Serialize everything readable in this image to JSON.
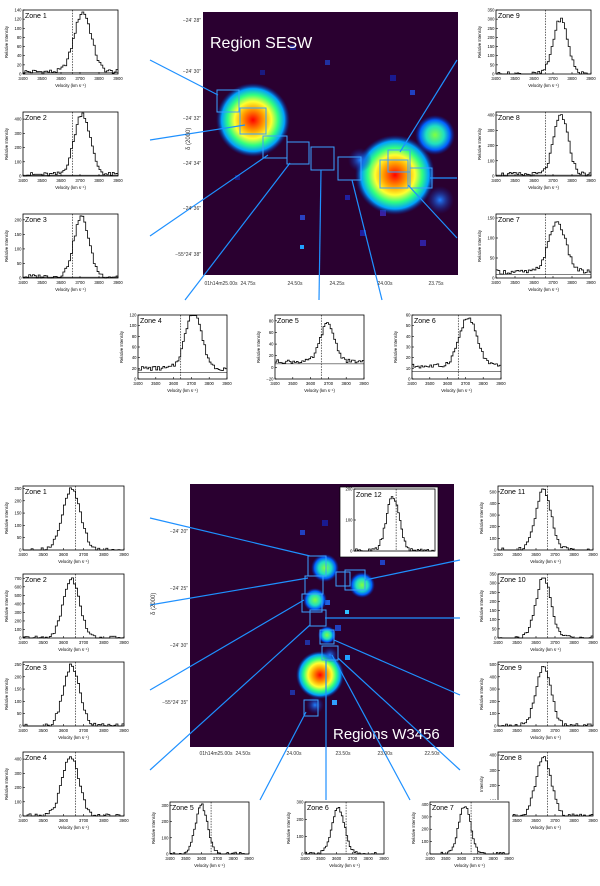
{
  "top": {
    "title": "Region SESW",
    "dec_label": "δ (2000)",
    "dec_ticks": [
      "−24′ 28″",
      "−24′ 30″",
      "−24′ 32″",
      "−24′ 34″",
      "−24′ 36″",
      "−55°24′ 38″"
    ],
    "ra_ticks": [
      "01h14m25.00s",
      "24.75s",
      "24.50s",
      "24.25s",
      "24.00s",
      "23.75s"
    ],
    "panels": [
      {
        "zone": "Zone 1",
        "ylabel": "Relative Intensity",
        "xlabel": "Velocity (km s⁻¹)",
        "yticks": [
          "0",
          "20",
          "40",
          "60",
          "80",
          "100",
          "120",
          "140"
        ],
        "ymax": 140,
        "peak": 130,
        "center": 3715,
        "width": 45,
        "dash": 3660,
        "baseline": 5
      },
      {
        "zone": "Zone 2",
        "ylabel": "Relative Intensity",
        "xlabel": "Velocity (km s⁻¹)",
        "yticks": [
          "0",
          "100",
          "200",
          "300",
          "400"
        ],
        "ymax": 450,
        "peak": 430,
        "center": 3712,
        "width": 42,
        "dash": 3660,
        "baseline": 10
      },
      {
        "zone": "Zone 3",
        "ylabel": "Relative Intensity",
        "xlabel": "Velocity (km s⁻¹)",
        "yticks": [
          "0",
          "50",
          "100",
          "150",
          "200"
        ],
        "ymax": 220,
        "peak": 205,
        "center": 3708,
        "width": 40,
        "dash": 3660,
        "baseline": 5
      },
      {
        "zone": "Zone 9",
        "ylabel": "Relative Intensity",
        "xlabel": "Velocity (km s⁻¹)",
        "yticks": [
          "0",
          "50",
          "100",
          "150",
          "200",
          "250",
          "300",
          "350"
        ],
        "ymax": 350,
        "peak": 300,
        "center": 3740,
        "width": 38,
        "dash": 3660,
        "baseline": 0
      },
      {
        "zone": "Zone 8",
        "ylabel": "Relative Intensity",
        "xlabel": "Velocity (km s⁻¹)",
        "yticks": [
          "0",
          "100",
          "200",
          "300",
          "400"
        ],
        "ymax": 420,
        "peak": 390,
        "center": 3742,
        "width": 38,
        "dash": 3660,
        "baseline": 10
      },
      {
        "zone": "Zone 7",
        "ylabel": "Relative Intensity",
        "xlabel": "Velocity (km s⁻¹)",
        "yticks": [
          "0",
          "50",
          "100",
          "150"
        ],
        "ymax": 160,
        "peak": 125,
        "center": 3722,
        "width": 45,
        "dash": 3660,
        "baseline": 15
      },
      {
        "zone": "Zone 4",
        "ylabel": "Relative Intensity",
        "xlabel": "Velocity (km s⁻¹)",
        "yticks": [
          "0",
          "20",
          "40",
          "60",
          "80",
          "100",
          "120"
        ],
        "ymax": 120,
        "peak": 108,
        "center": 3712,
        "width": 45,
        "dash": 3640,
        "baseline": 20
      },
      {
        "zone": "Zone 5",
        "ylabel": "Relative Intensity",
        "xlabel": "Velocity (km s⁻¹)",
        "yticks": [
          "−20",
          "0",
          "20",
          "40",
          "60",
          "80"
        ],
        "ymax": 90,
        "peak": 65,
        "center": 3695,
        "width": 40,
        "dash": 3660,
        "baseline": 10
      },
      {
        "zone": "Zone 6",
        "ylabel": "Relative Intensity",
        "xlabel": "Velocity (km s⁻¹)",
        "yticks": [
          "0",
          "10",
          "20",
          "30",
          "40",
          "50",
          "60"
        ],
        "ymax": 60,
        "peak": 45,
        "center": 3715,
        "width": 50,
        "dash": 3660,
        "baseline": 12
      }
    ]
  },
  "bottom": {
    "title": "Regions W3456",
    "dec_label": "δ (2000)",
    "dec_ticks": [
      "−24′ 20″",
      "−24′ 25″",
      "−24′ 30″",
      "−55°24′ 35″"
    ],
    "ra_ticks": [
      "01h14m25.00s",
      "24.50s",
      "24.00s",
      "23.50s",
      "23.00s",
      "22.50s"
    ],
    "panels": [
      {
        "zone": "Zone 1",
        "ylabel": "Relative Intensity",
        "xlabel": "Velocity (km s⁻¹)",
        "yticks": [
          "0",
          "50",
          "100",
          "150",
          "200",
          "250"
        ],
        "ymax": 260,
        "peak": 245,
        "center": 3640,
        "width": 45,
        "dash": 3660,
        "baseline": 0
      },
      {
        "zone": "Zone 2",
        "ylabel": "Relative Intensity",
        "xlabel": "Velocity (km s⁻¹)",
        "yticks": [
          "0",
          "100",
          "200",
          "300",
          "400",
          "500",
          "600",
          "700"
        ],
        "ymax": 750,
        "peak": 700,
        "center": 3640,
        "width": 40,
        "dash": 3660,
        "baseline": 0
      },
      {
        "zone": "Zone 3",
        "ylabel": "Relative Intensity",
        "xlabel": "Velocity (km s⁻¹)",
        "yticks": [
          "0",
          "50",
          "100",
          "150",
          "200",
          "250"
        ],
        "ymax": 260,
        "peak": 245,
        "center": 3640,
        "width": 40,
        "dash": 3660,
        "baseline": 0
      },
      {
        "zone": "Zone 4",
        "ylabel": "Relative Intensity",
        "xlabel": "Velocity (km s⁻¹)",
        "yticks": [
          "0",
          "100",
          "200",
          "300",
          "400"
        ],
        "ymax": 450,
        "peak": 420,
        "center": 3635,
        "width": 42,
        "dash": 3660,
        "baseline": 0
      },
      {
        "zone": "Zone 11",
        "ylabel": "Relative Intensity",
        "xlabel": "Velocity (km s⁻¹)",
        "yticks": [
          "0",
          "100",
          "200",
          "300",
          "400",
          "500"
        ],
        "ymax": 550,
        "peak": 520,
        "center": 3640,
        "width": 40,
        "dash": 3660,
        "baseline": 0
      },
      {
        "zone": "Zone 10",
        "ylabel": "Relative Intensity",
        "xlabel": "Velocity (km s⁻¹)",
        "yticks": [
          "0",
          "50",
          "100",
          "150",
          "200",
          "250",
          "300",
          "350"
        ],
        "ymax": 350,
        "peak": 330,
        "center": 3640,
        "width": 40,
        "dash": 3660,
        "baseline": 0
      },
      {
        "zone": "Zone 9",
        "ylabel": "Relative Intensity",
        "xlabel": "Velocity (km s⁻¹)",
        "yticks": [
          "0",
          "100",
          "200",
          "300",
          "400",
          "500"
        ],
        "ymax": 520,
        "peak": 470,
        "center": 3640,
        "width": 40,
        "dash": 3660,
        "baseline": 0
      },
      {
        "zone": "Zone 8",
        "ylabel": "Intensity",
        "xlabel": "Velocity (km s⁻¹)",
        "yticks": [
          "0",
          "100",
          "200",
          "300",
          "400"
        ],
        "ymax": 420,
        "peak": 390,
        "center": 3640,
        "width": 40,
        "dash": 3660,
        "baseline": 0
      },
      {
        "zone": "Zone 5",
        "ylabel": "Relative Intensity",
        "xlabel": "Velocity (km s⁻¹)",
        "yticks": [
          "0",
          "100",
          "200",
          "300"
        ],
        "ymax": 320,
        "peak": 300,
        "center": 3600,
        "width": 38,
        "dash": 3660,
        "baseline": 0
      },
      {
        "zone": "Zone 6",
        "ylabel": "Relative Intensity",
        "xlabel": "Velocity (km s⁻¹)",
        "yticks": [
          "0",
          "100",
          "200",
          "300"
        ],
        "ymax": 300,
        "peak": 270,
        "center": 3610,
        "width": 40,
        "dash": 3660,
        "baseline": 0
      },
      {
        "zone": "Zone 7",
        "ylabel": "Relative Intensity",
        "xlabel": "Velocity (km s⁻¹)",
        "yticks": [
          "0",
          "100",
          "200",
          "300",
          "400"
        ],
        "ymax": 420,
        "peak": 390,
        "center": 3620,
        "width": 38,
        "dash": 3660,
        "baseline": 0
      },
      {
        "zone": "Zone 12",
        "ylabel": "",
        "xlabel": "",
        "yticks": [
          "0",
          "100",
          "200"
        ],
        "ymax": 200,
        "peak": 175,
        "center": 3640,
        "width": 40,
        "dash": 3660,
        "baseline": 0
      }
    ]
  },
  "xticks": [
    "3400",
    "3500",
    "3600",
    "3700",
    "3800",
    "3900"
  ],
  "colors": {
    "map_bg": "#2a0030",
    "line": "#1e90ff"
  }
}
